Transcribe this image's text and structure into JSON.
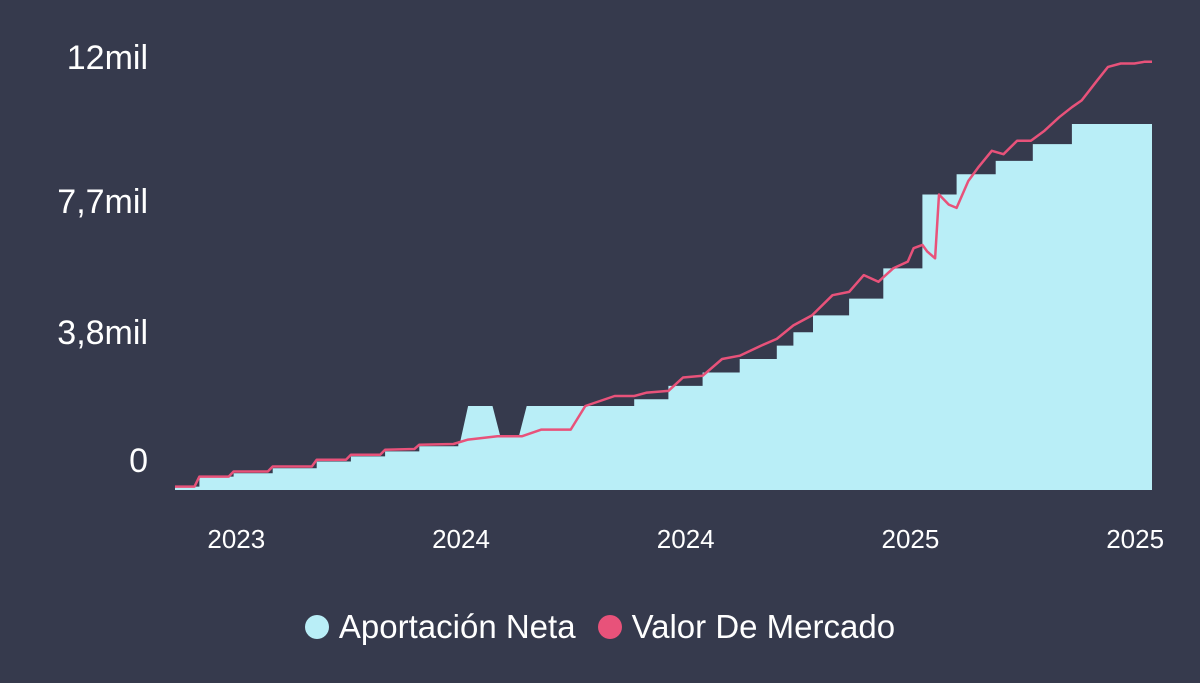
{
  "chart_data": {
    "type": "area",
    "colors": {
      "background": "#363a4d",
      "net": "#b9eef7",
      "market": "#e8527a"
    },
    "yticks": [
      {
        "value": 0,
        "label": "0"
      },
      {
        "value": 3800,
        "label": "3,8mil"
      },
      {
        "value": 7700,
        "label": "7,7mil"
      },
      {
        "value": 12000,
        "label": "12mil"
      }
    ],
    "xticks": [
      {
        "x": 0.07,
        "label": "2023"
      },
      {
        "x": 0.3,
        "label": "2024"
      },
      {
        "x": 0.53,
        "label": "2024"
      },
      {
        "x": 0.76,
        "label": "2025"
      },
      {
        "x": 0.99,
        "label": "2025"
      }
    ],
    "ylim": [
      -900,
      12500
    ],
    "xlim": [
      0,
      1
    ],
    "series": [
      {
        "name": "Aportación Neta",
        "type": "area",
        "points": [
          [
            0.0,
            -800
          ],
          [
            0.025,
            -800
          ],
          [
            0.025,
            -500
          ],
          [
            0.06,
            -500
          ],
          [
            0.06,
            -400
          ],
          [
            0.1,
            -400
          ],
          [
            0.1,
            -250
          ],
          [
            0.145,
            -250
          ],
          [
            0.145,
            -50
          ],
          [
            0.18,
            -50
          ],
          [
            0.18,
            100
          ],
          [
            0.215,
            100
          ],
          [
            0.215,
            250
          ],
          [
            0.25,
            250
          ],
          [
            0.25,
            400
          ],
          [
            0.29,
            400
          ],
          [
            0.29,
            550
          ],
          [
            0.29,
            550
          ],
          [
            0.292,
            550
          ],
          [
            0.3,
            1600
          ],
          [
            0.325,
            1600
          ],
          [
            0.333,
            700
          ],
          [
            0.352,
            700
          ],
          [
            0.36,
            1600
          ],
          [
            0.42,
            1600
          ],
          [
            0.42,
            1600
          ],
          [
            0.47,
            1600
          ],
          [
            0.47,
            1800
          ],
          [
            0.505,
            1800
          ],
          [
            0.505,
            2200
          ],
          [
            0.54,
            2200
          ],
          [
            0.54,
            2600
          ],
          [
            0.578,
            2600
          ],
          [
            0.578,
            3000
          ],
          [
            0.616,
            3000
          ],
          [
            0.616,
            3400
          ],
          [
            0.633,
            3400
          ],
          [
            0.633,
            3800
          ],
          [
            0.653,
            3800
          ],
          [
            0.653,
            4300
          ],
          [
            0.69,
            4300
          ],
          [
            0.69,
            4800
          ],
          [
            0.725,
            4800
          ],
          [
            0.725,
            5700
          ],
          [
            0.765,
            5700
          ],
          [
            0.765,
            7900
          ],
          [
            0.8,
            7900
          ],
          [
            0.8,
            8500
          ],
          [
            0.84,
            8500
          ],
          [
            0.84,
            8900
          ],
          [
            0.878,
            8900
          ],
          [
            0.878,
            9400
          ],
          [
            0.918,
            9400
          ],
          [
            0.918,
            10000
          ],
          [
            0.96,
            10000
          ],
          [
            1.0,
            10000
          ]
        ]
      },
      {
        "name": "Valor De Mercado",
        "type": "line",
        "points": [
          [
            0.0,
            -800
          ],
          [
            0.02,
            -800
          ],
          [
            0.025,
            -500
          ],
          [
            0.055,
            -500
          ],
          [
            0.06,
            -350
          ],
          [
            0.095,
            -350
          ],
          [
            0.1,
            -200
          ],
          [
            0.14,
            -200
          ],
          [
            0.145,
            0
          ],
          [
            0.175,
            0
          ],
          [
            0.18,
            150
          ],
          [
            0.21,
            150
          ],
          [
            0.215,
            300
          ],
          [
            0.245,
            320
          ],
          [
            0.25,
            450
          ],
          [
            0.285,
            470
          ],
          [
            0.3,
            600
          ],
          [
            0.33,
            700
          ],
          [
            0.355,
            700
          ],
          [
            0.375,
            900
          ],
          [
            0.405,
            900
          ],
          [
            0.42,
            1600
          ],
          [
            0.45,
            1900
          ],
          [
            0.47,
            1900
          ],
          [
            0.483,
            2000
          ],
          [
            0.505,
            2050
          ],
          [
            0.52,
            2450
          ],
          [
            0.54,
            2500
          ],
          [
            0.56,
            3000
          ],
          [
            0.578,
            3100
          ],
          [
            0.6,
            3400
          ],
          [
            0.616,
            3600
          ],
          [
            0.633,
            4000
          ],
          [
            0.652,
            4300
          ],
          [
            0.673,
            4900
          ],
          [
            0.69,
            5000
          ],
          [
            0.705,
            5500
          ],
          [
            0.72,
            5300
          ],
          [
            0.735,
            5700
          ],
          [
            0.75,
            5900
          ],
          [
            0.756,
            6300
          ],
          [
            0.765,
            6400
          ],
          [
            0.77,
            6200
          ],
          [
            0.778,
            6000
          ],
          [
            0.782,
            7900
          ],
          [
            0.792,
            7600
          ],
          [
            0.8,
            7500
          ],
          [
            0.812,
            8300
          ],
          [
            0.822,
            8700
          ],
          [
            0.836,
            9200
          ],
          [
            0.848,
            9100
          ],
          [
            0.862,
            9500
          ],
          [
            0.876,
            9500
          ],
          [
            0.89,
            9800
          ],
          [
            0.905,
            10200
          ],
          [
            0.918,
            10500
          ],
          [
            0.928,
            10700
          ],
          [
            0.944,
            11300
          ],
          [
            0.955,
            11700
          ],
          [
            0.968,
            11800
          ],
          [
            0.982,
            11800
          ],
          [
            0.992,
            11850
          ],
          [
            1.0,
            11850
          ]
        ]
      }
    ]
  }
}
